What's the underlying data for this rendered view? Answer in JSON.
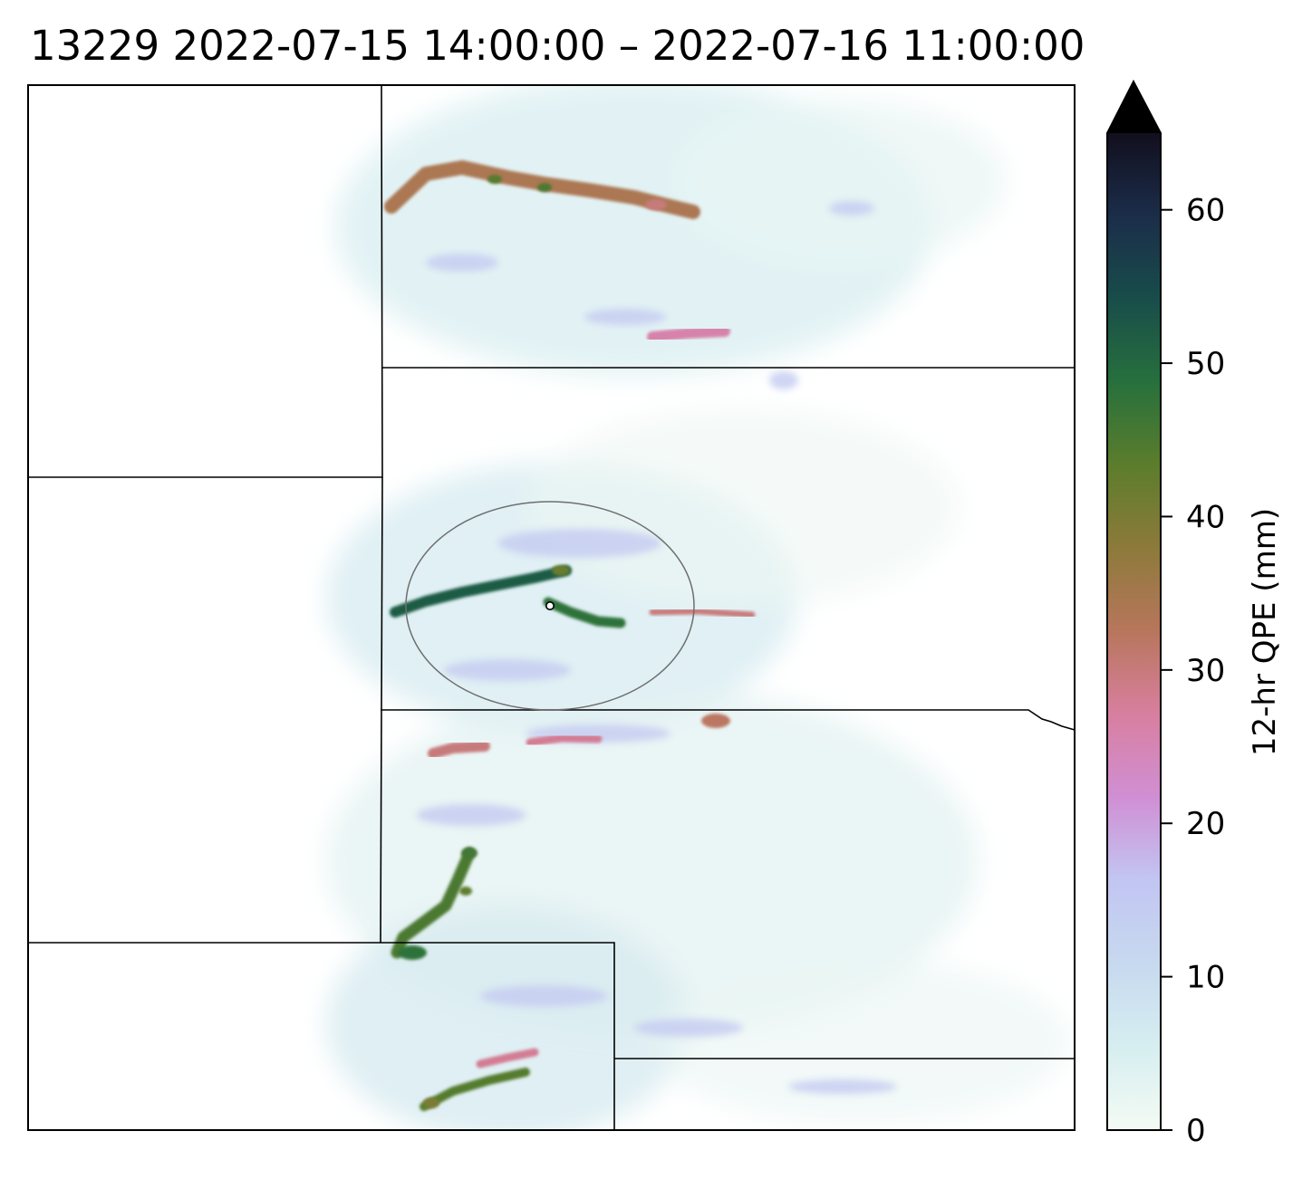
{
  "figure": {
    "title": "13229   2022-07-15 14:00:00 – 2022-07-16 11:00:00"
  },
  "chart_data": {
    "type": "heatmap",
    "title": "13229   2022-07-15 14:00:00 – 2022-07-16 11:00:00",
    "xlabel": "",
    "ylabel": "",
    "colorbar": {
      "label": "12-hr QPE (mm)",
      "range": [
        0,
        65
      ],
      "extend": "max",
      "colormap": "cubehelix_r",
      "ticks": [
        0,
        10,
        20,
        30,
        40,
        50,
        60
      ],
      "tick_labels": [
        "0",
        "10",
        "20",
        "30",
        "40",
        "50",
        "60"
      ],
      "colors": [
        "#f4fbf4",
        "#d6eef0",
        "#c7d9ef",
        "#c2c6f2",
        "#d08fd4",
        "#d87fa0",
        "#b8765c",
        "#8d7a3a",
        "#5c7d2c",
        "#27703d",
        "#184d4a",
        "#1b2d4a",
        "#120f1e"
      ]
    },
    "grid": false,
    "legend": "none",
    "map": {
      "state_boundaries": true,
      "range_ring": true,
      "radar_site_marker": true
    },
    "precip_features": [
      {
        "feature": "band-north",
        "peak_mm": 34
      },
      {
        "feature": "band-north-cell-1",
        "peak_mm": 44
      },
      {
        "feature": "band-north-cell-2",
        "peak_mm": 45
      },
      {
        "feature": "band-north-east",
        "peak_mm": 30
      },
      {
        "feature": "band-north-south",
        "peak_mm": 26
      },
      {
        "feature": "band-central-west",
        "peak_mm": 52
      },
      {
        "feature": "band-central-east",
        "peak_mm": 48
      },
      {
        "feature": "cell-central-top",
        "peak_mm": 42
      },
      {
        "feature": "band-central-tail",
        "peak_mm": 30
      },
      {
        "feature": "band-southern-1",
        "peak_mm": 30
      },
      {
        "feature": "band-southern-2",
        "peak_mm": 28
      },
      {
        "feature": "cell-southern-east",
        "peak_mm": 32
      },
      {
        "feature": "band-southwest-chain",
        "peak_mm": 45
      },
      {
        "feature": "cell-southwest-1",
        "peak_mm": 46
      },
      {
        "feature": "cell-southwest-2",
        "peak_mm": 43
      },
      {
        "feature": "cell-southwest-3",
        "peak_mm": 48
      },
      {
        "feature": "band-far-south-1",
        "peak_mm": 28
      },
      {
        "feature": "band-far-south-2",
        "peak_mm": 44
      },
      {
        "feature": "cell-far-south",
        "peak_mm": 40
      }
    ]
  }
}
